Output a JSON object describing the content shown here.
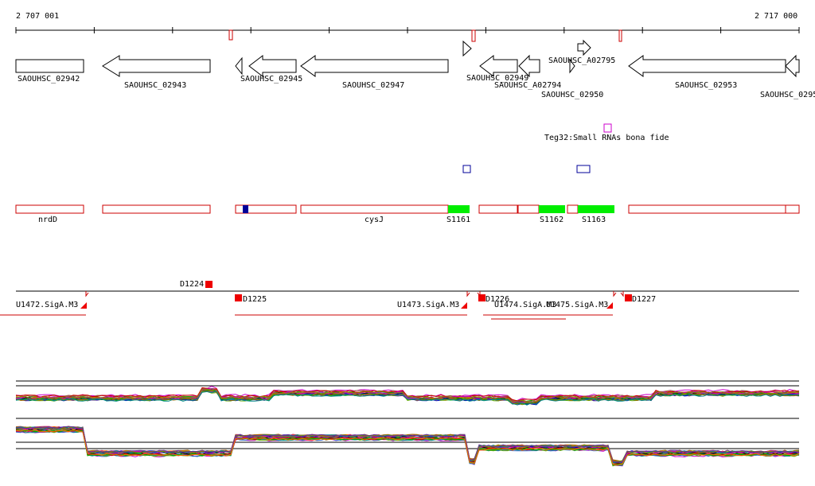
{
  "coordinates": {
    "start_label": "2 707 001",
    "end_label": "2 717 000"
  },
  "colors": {
    "gene_outline": "#000000",
    "feature_outline": "#cc0000",
    "srna_fill": "#00ee00",
    "teg_box": "#cc00cc",
    "blue_box": "#000099",
    "tss_fill": "#ee0000",
    "trace_line": "#cc0000"
  },
  "genes": [
    "SAOUHSC_02942",
    "SAOUHSC_02943",
    "SAOUHSC_02945",
    "SAOUHSC_02947",
    "SAOUHSC_02949",
    "SAOUHSC_A02794",
    "SAOUHSC_A02795",
    "SAOUHSC_02950",
    "SAOUHSC_02953",
    "SAOUHSC_0295"
  ],
  "srna_note": "Teg32:Small RNAs bona fide",
  "features": {
    "nrdD": "nrdD",
    "cysJ": "cysJ",
    "s1161": "S1161",
    "s1162": "S1162",
    "s1163": "S1163"
  },
  "tss": {
    "d1224": "D1224",
    "d1225": "D1225",
    "d1226": "D1226",
    "d1227": "D1227"
  },
  "promoters": {
    "u1472": "U1472.SigA.M3",
    "u1473": "U1473.SigA.M3",
    "u1474": "U1474.SigA.M3",
    "u1475": "U1475.SigA.M3"
  }
}
